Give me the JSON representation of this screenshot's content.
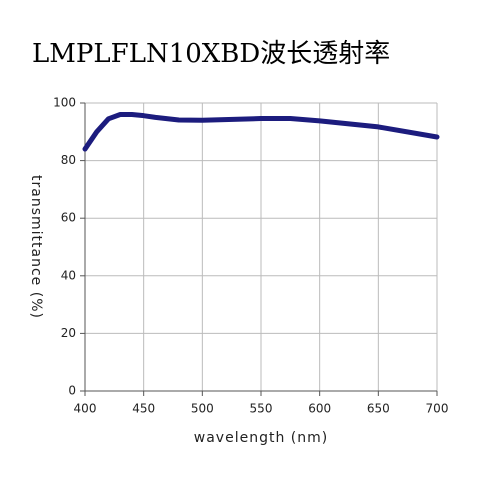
{
  "chart_data": {
    "type": "line",
    "title": "LMPLFLN10XBD波长透射率",
    "x_label": "wavelength (nm)",
    "y_label": "transmittance (%)",
    "x": [
      400,
      410,
      420,
      430,
      440,
      450,
      460,
      480,
      500,
      550,
      575,
      600,
      650,
      700
    ],
    "series": [
      {
        "color": "#1c1c7e",
        "values": [
          84,
          90,
          94.5,
          96,
          96,
          95.6,
          95,
          94.1,
          94,
          94.6,
          94.6,
          93.8,
          91.7,
          88.2
        ]
      }
    ],
    "xlim": [
      400,
      700
    ],
    "xticks": [
      400,
      450,
      500,
      550,
      600,
      650,
      700
    ],
    "ylim": [
      0,
      100
    ],
    "yticks": [
      0,
      20,
      40,
      60,
      80,
      100
    ],
    "grid": true
  }
}
